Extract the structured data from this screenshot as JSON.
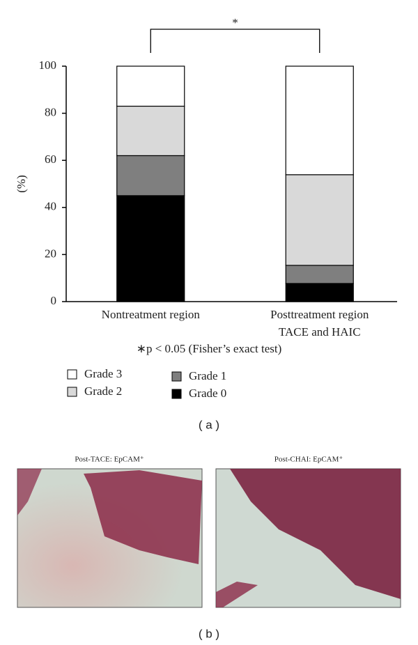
{
  "chart_data": {
    "type": "stacked_bar",
    "ylabel": "(%)",
    "categories": [
      "Nontreatment region",
      "Posttreatment region\nTACE and HAIC"
    ],
    "series": [
      {
        "name": "Grade 0",
        "color": "#000000",
        "values": [
          45,
          7.7
        ]
      },
      {
        "name": "Grade 1",
        "color": "#7f7f7f",
        "values": [
          17,
          7.7
        ]
      },
      {
        "name": "Grade 2",
        "color": "#d9d9d9",
        "values": [
          21,
          38.5
        ]
      },
      {
        "name": "Grade 3",
        "color": "#ffffff",
        "values": [
          17,
          46.1
        ]
      }
    ],
    "ylim": [
      0,
      100
    ],
    "yticks": [
      0,
      20,
      40,
      60,
      80,
      100
    ],
    "significance": "*",
    "note": "∗p < 0.05 (Fisher’s exact test)",
    "panel_label": "( a )"
  },
  "panel_b": {
    "panel_label": "( b )",
    "images": [
      {
        "title": "Post-TACE: EpCAM⁺"
      },
      {
        "title": "Post-CHAI: EpCAM⁺"
      }
    ]
  }
}
